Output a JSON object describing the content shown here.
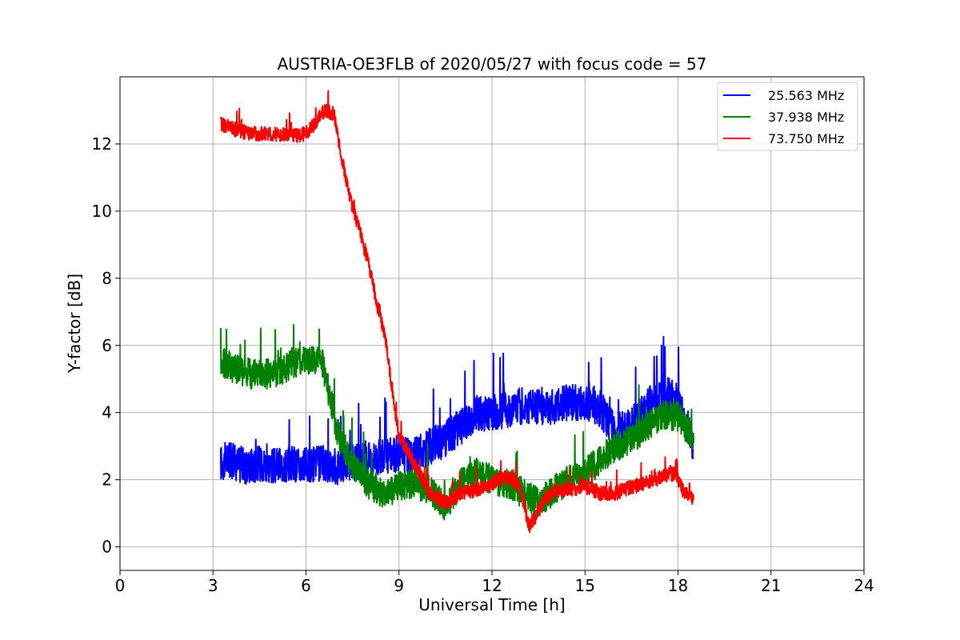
{
  "chart_data": {
    "type": "line",
    "title": "AUSTRIA-OE3FLB of 2020/05/27 with focus code = 57",
    "xlabel": "Universal Time [h]",
    "ylabel": "Y-factor [dB]",
    "xlim": [
      0,
      24
    ],
    "ylim": [
      -0.7,
      14
    ],
    "xticks": [
      0,
      3,
      6,
      9,
      12,
      15,
      18,
      21,
      24
    ],
    "yticks": [
      0,
      2,
      4,
      6,
      8,
      10,
      12
    ],
    "grid": true,
    "legend_position": "top-right",
    "series": [
      {
        "name": "25.563 MHz",
        "color": "#0000ff",
        "x": [
          3.25,
          3.5,
          4.0,
          4.5,
          5.0,
          5.5,
          6.0,
          6.5,
          7.0,
          7.5,
          8.0,
          8.5,
          9.0,
          9.5,
          10.0,
          10.5,
          11.0,
          11.5,
          12.0,
          12.5,
          13.0,
          13.5,
          14.0,
          14.5,
          15.0,
          15.5,
          16.0,
          16.5,
          17.0,
          17.5,
          18.0,
          18.5
        ],
        "y": [
          2.5,
          2.6,
          2.4,
          2.5,
          2.4,
          2.5,
          2.4,
          2.5,
          2.4,
          2.5,
          2.6,
          2.7,
          2.8,
          2.7,
          3.0,
          3.2,
          3.6,
          4.0,
          4.0,
          4.1,
          4.2,
          4.2,
          4.2,
          4.3,
          4.3,
          4.1,
          3.4,
          3.6,
          4.2,
          4.6,
          4.3,
          3.1
        ]
      },
      {
        "name": "37.938 MHz",
        "color": "#008000",
        "x": [
          3.25,
          3.5,
          4.0,
          4.5,
          5.0,
          5.5,
          6.0,
          6.5,
          7.0,
          7.5,
          8.0,
          8.5,
          9.0,
          9.5,
          10.0,
          10.5,
          11.0,
          11.5,
          12.0,
          12.5,
          13.0,
          13.5,
          14.0,
          14.5,
          15.0,
          15.5,
          16.0,
          16.5,
          17.0,
          17.5,
          18.0,
          18.5
        ],
        "y": [
          5.5,
          5.4,
          5.2,
          5.1,
          5.2,
          5.4,
          5.6,
          5.6,
          3.5,
          2.4,
          1.9,
          1.6,
          1.8,
          1.9,
          1.7,
          1.2,
          1.9,
          2.2,
          2.0,
          1.9,
          1.6,
          1.3,
          1.7,
          2.0,
          2.2,
          2.6,
          3.0,
          3.2,
          3.6,
          3.9,
          3.9,
          3.2
        ]
      },
      {
        "name": "73.750 MHz",
        "color": "#ff0000",
        "x": [
          3.25,
          3.5,
          4.0,
          4.5,
          5.0,
          5.5,
          6.0,
          6.3,
          6.6,
          6.9,
          7.1,
          7.4,
          7.7,
          8.0,
          8.3,
          8.6,
          8.8,
          9.0,
          9.3,
          9.6,
          10.0,
          10.5,
          11.0,
          11.5,
          12.0,
          12.5,
          12.9,
          13.2,
          13.4,
          13.7,
          14.0,
          14.5,
          15.0,
          15.5,
          16.0,
          16.5,
          17.0,
          17.5,
          17.9,
          18.2,
          18.5
        ],
        "y": [
          12.6,
          12.5,
          12.35,
          12.3,
          12.3,
          12.25,
          12.3,
          12.6,
          13.0,
          12.9,
          11.8,
          10.5,
          9.5,
          8.5,
          7.2,
          6.0,
          4.5,
          3.3,
          2.8,
          2.3,
          1.6,
          1.3,
          1.6,
          1.7,
          1.9,
          2.1,
          1.8,
          0.6,
          0.9,
          1.4,
          1.7,
          1.7,
          1.8,
          1.6,
          1.6,
          1.8,
          1.9,
          2.1,
          2.2,
          1.6,
          1.4
        ]
      }
    ]
  }
}
